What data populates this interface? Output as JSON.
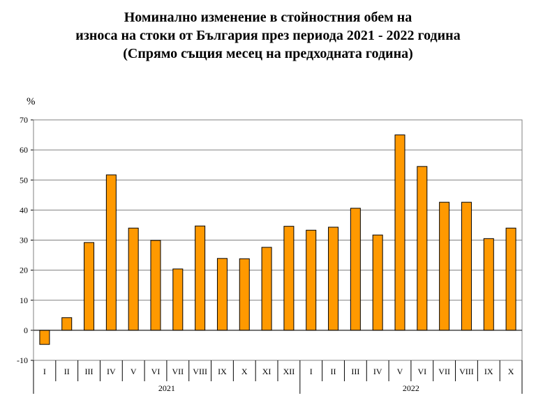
{
  "title": {
    "line1": "Номинално изменение в стойностния обем на",
    "line2": "износа на стоки от България през периода 2021 - 2022 година",
    "line3": "(Спрямо същия месец на предходната година)"
  },
  "colors": {
    "bar": "#FF9900",
    "bar_stroke": "#000000",
    "grid": "#808080",
    "axis": "#000000"
  },
  "chart_data": {
    "type": "bar",
    "title": "Номинално изменение в стойностния обем на износа на стоки от България през периода 2021 - 2022 година (Спрямо същия месец на предходната година)",
    "ylabel": "%",
    "ylim": [
      -10,
      70
    ],
    "yticks": [
      -10,
      0,
      10,
      20,
      30,
      40,
      50,
      60,
      70
    ],
    "grid": true,
    "groups": [
      {
        "label": "2021",
        "categories": [
          "I",
          "II",
          "III",
          "IV",
          "V",
          "VI",
          "VII",
          "VIII",
          "IX",
          "X",
          "XI",
          "XII"
        ]
      },
      {
        "label": "2022",
        "categories": [
          "I",
          "II",
          "III",
          "IV",
          "V",
          "VI",
          "VII",
          "VIII",
          "IX",
          "X"
        ]
      }
    ],
    "categories": [
      "I",
      "II",
      "III",
      "IV",
      "V",
      "VI",
      "VII",
      "VIII",
      "IX",
      "X",
      "XI",
      "XII",
      "I",
      "II",
      "III",
      "IV",
      "V",
      "VI",
      "VII",
      "VIII",
      "IX",
      "X"
    ],
    "values": [
      -4.7,
      4.2,
      29.2,
      51.7,
      34.0,
      29.9,
      20.4,
      34.7,
      23.9,
      23.8,
      27.6,
      34.6,
      33.3,
      34.3,
      40.6,
      31.7,
      65.0,
      54.5,
      42.6,
      42.6,
      30.5,
      34.0
    ]
  }
}
